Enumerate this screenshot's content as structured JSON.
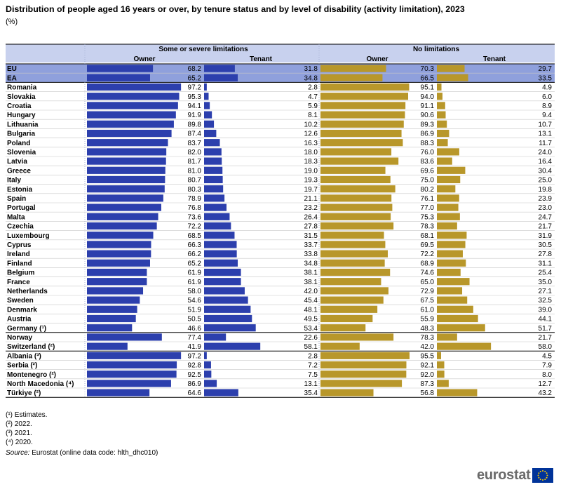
{
  "title": "Distribution of people aged 16 years or over, by tenure status and by level of disability (activity limitation), 2023",
  "subtitle": "(%)",
  "footnotes": [
    "(¹) Estimates.",
    "(²) 2022.",
    "(³) 2021.",
    "(⁴) 2020."
  ],
  "source_label": "Source:",
  "source_text": "Eurostat (online data code: hlth_dhc010)",
  "logo_text": "eurostat",
  "colors": {
    "blue": "#2c3fad",
    "gold": "#b8972a",
    "header_bg": "#c8d1ee",
    "aggregate_bg": "#8fa0dc",
    "grid": "#c8c8c8"
  },
  "chart_data": {
    "type": "bar",
    "orientation": "horizontal",
    "group_headers": [
      "Some or severe limitations",
      "No limitations"
    ],
    "column_headers": [
      "Owner",
      "Tenant",
      "Owner",
      "Tenant"
    ],
    "categories": [
      "EU",
      "EA",
      "Romania",
      "Slovakia",
      "Croatia",
      "Hungary",
      "Lithuania",
      "Bulgaria",
      "Poland",
      "Slovenia",
      "Latvia",
      "Greece",
      "Italy",
      "Estonia",
      "Spain",
      "Portugal",
      "Malta",
      "Czechia",
      "Luxembourg",
      "Cyprus",
      "Ireland",
      "Finland",
      "Belgium",
      "France",
      "Netherlands",
      "Sweden",
      "Denmark",
      "Austria",
      "Germany (¹)",
      "Norway",
      "Switzerland (²)",
      "Albania (³)",
      "Serbia (²)",
      "Montenegro (²)",
      "North Macedonia (⁴)",
      "Türkiye (²)"
    ],
    "series": [
      {
        "name": "Some or severe limitations - Owner",
        "values": [
          68.2,
          65.2,
          97.2,
          95.3,
          94.1,
          91.9,
          89.8,
          87.4,
          83.7,
          82.0,
          81.7,
          81.0,
          80.7,
          80.3,
          78.9,
          76.8,
          73.6,
          72.2,
          68.5,
          66.3,
          66.2,
          65.2,
          61.9,
          61.9,
          58.0,
          54.6,
          51.9,
          50.5,
          46.6,
          77.4,
          41.9,
          97.2,
          92.8,
          92.5,
          86.9,
          64.6
        ]
      },
      {
        "name": "Some or severe limitations - Tenant",
        "values": [
          31.8,
          34.8,
          2.8,
          4.7,
          5.9,
          8.1,
          10.2,
          12.6,
          16.3,
          18.0,
          18.3,
          19.0,
          19.3,
          19.7,
          21.1,
          23.2,
          26.4,
          27.8,
          31.5,
          33.7,
          33.8,
          34.8,
          38.1,
          38.1,
          42.0,
          45.4,
          48.1,
          49.5,
          53.4,
          22.6,
          58.1,
          2.8,
          7.2,
          7.5,
          13.1,
          35.4
        ]
      },
      {
        "name": "No limitations - Owner",
        "values": [
          70.3,
          66.5,
          95.1,
          94.0,
          91.1,
          90.6,
          89.3,
          86.9,
          88.3,
          76.0,
          83.6,
          69.6,
          75.0,
          80.2,
          76.1,
          77.0,
          75.3,
          78.3,
          68.1,
          69.5,
          72.2,
          68.9,
          74.6,
          65.0,
          72.9,
          67.5,
          61.0,
          55.9,
          48.3,
          78.3,
          42.0,
          95.5,
          92.1,
          92.0,
          87.3,
          56.8
        ]
      },
      {
        "name": "No limitations - Tenant",
        "values": [
          29.7,
          33.5,
          4.9,
          6.0,
          8.9,
          9.4,
          10.7,
          13.1,
          11.7,
          24.0,
          16.4,
          30.4,
          25.0,
          19.8,
          23.9,
          23.0,
          24.7,
          21.7,
          31.9,
          30.5,
          27.8,
          31.1,
          25.4,
          35.0,
          27.1,
          32.5,
          39.0,
          44.1,
          51.7,
          21.7,
          58.0,
          4.5,
          7.9,
          8.0,
          12.7,
          43.2
        ]
      }
    ],
    "value_format": "0.0",
    "aggregate_rows": [
      "EU",
      "EA"
    ]
  }
}
